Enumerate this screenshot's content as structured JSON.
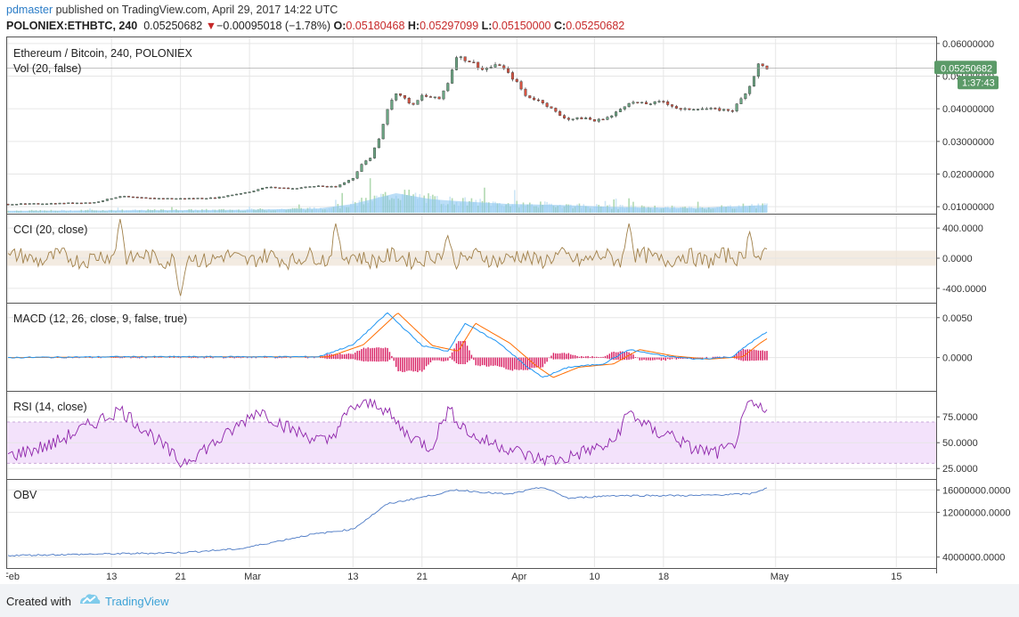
{
  "header": {
    "user": "pdmaster",
    "published_text": "published on TradingView.com, April 29, 2017 14:22 UTC",
    "symbol": "POLONIEX:ETHBTC, 240",
    "last": "0.05250682",
    "change_arrow": "▼",
    "change": "−0.00095018 (−1.78%)",
    "o_label": "O:",
    "o_value": "0.05180468",
    "h_label": "H:",
    "h_value": "0.05297099",
    "l_label": "L:",
    "l_value": "0.05150000",
    "c_label": "C:",
    "c_value": "0.05250682"
  },
  "footer": {
    "created_with": "Created with",
    "brand": "TradingView",
    "logo_icon": "tradingview-logo-icon"
  },
  "colors": {
    "up": "#6ba583",
    "down": "#d75442",
    "volume": "#83c3f0",
    "cci": "#a0804a",
    "macd": "#2196f3",
    "signal": "#ff6d00",
    "hist": "#d81b60",
    "rsi": "#8e24aa",
    "obv": "#4a78c4",
    "grid": "#e6e6e6",
    "price_tag": "#5b9a68"
  },
  "chart_data": [
    {
      "type": "candlestick",
      "title": "Ethereum / Bitcoin, 240, POLONIEX",
      "volume_label": "Vol (20, false)",
      "ylim": [
        0.0095,
        0.0605
      ],
      "y_ticks": [
        "0.06000000",
        "0.05000000",
        "0.04000000",
        "0.03000000",
        "0.02000000",
        "0.01000000"
      ],
      "y_tick_values": [
        0.06,
        0.05,
        0.04,
        0.03,
        0.02,
        0.01
      ],
      "price_tag": "0.05250682",
      "countdown_tag": "1:37:43",
      "x_ticks": [
        "Feb",
        "13",
        "21",
        "Mar",
        "13",
        "21",
        "Apr",
        "10",
        "18",
        "May",
        "15"
      ],
      "x_tick_days": [
        0,
        12,
        20,
        28,
        40,
        48,
        59,
        68,
        76,
        89,
        103
      ],
      "last_day": 88,
      "max_day": 107,
      "price_path": [
        [
          0,
          0.0108
        ],
        [
          5,
          0.011
        ],
        [
          10,
          0.0113
        ],
        [
          13,
          0.0132
        ],
        [
          16,
          0.0126
        ],
        [
          20,
          0.0125
        ],
        [
          24,
          0.0127
        ],
        [
          28,
          0.0146
        ],
        [
          30,
          0.016
        ],
        [
          33,
          0.0156
        ],
        [
          36,
          0.0164
        ],
        [
          38,
          0.016
        ],
        [
          40,
          0.0188
        ],
        [
          41,
          0.023
        ],
        [
          42,
          0.025
        ],
        [
          43,
          0.031
        ],
        [
          44,
          0.04
        ],
        [
          45,
          0.045
        ],
        [
          47,
          0.041
        ],
        [
          48,
          0.044
        ],
        [
          50,
          0.043
        ],
        [
          51,
          0.048
        ],
        [
          52,
          0.0562
        ],
        [
          54,
          0.054
        ],
        [
          55,
          0.052
        ],
        [
          57,
          0.0535
        ],
        [
          59,
          0.048
        ],
        [
          60,
          0.044
        ],
        [
          62,
          0.042
        ],
        [
          64,
          0.038
        ],
        [
          65,
          0.0368
        ],
        [
          67,
          0.0372
        ],
        [
          68,
          0.0362
        ],
        [
          70,
          0.0378
        ],
        [
          72,
          0.042
        ],
        [
          74,
          0.0415
        ],
        [
          76,
          0.0422
        ],
        [
          78,
          0.0396
        ],
        [
          80,
          0.0402
        ],
        [
          82,
          0.0398
        ],
        [
          84,
          0.0395
        ],
        [
          85,
          0.043
        ],
        [
          86,
          0.047
        ],
        [
          87,
          0.0535
        ],
        [
          88,
          0.0525
        ]
      ],
      "volume_path": [
        [
          0,
          0.1
        ],
        [
          10,
          0.12
        ],
        [
          27,
          0.15
        ],
        [
          36,
          0.22
        ],
        [
          40,
          0.45
        ],
        [
          45,
          1.0
        ],
        [
          49,
          0.7
        ],
        [
          52,
          0.6
        ],
        [
          58,
          0.45
        ],
        [
          64,
          0.4
        ],
        [
          70,
          0.3
        ],
        [
          80,
          0.25
        ],
        [
          88,
          0.4
        ]
      ]
    },
    {
      "type": "line",
      "title": "CCI (20, close)",
      "ylim": [
        -520,
        520
      ],
      "y_ticks": [
        "400.0000",
        "0.0000",
        "-400.0000"
      ],
      "y_tick_values": [
        400,
        0,
        -400
      ],
      "band": [
        -100,
        100
      ],
      "spikes": [
        [
          13,
          520
        ],
        [
          20,
          -500
        ],
        [
          38,
          460
        ],
        [
          51,
          300
        ],
        [
          72,
          460
        ],
        [
          86,
          350
        ]
      ]
    },
    {
      "type": "line",
      "title": "MACD (12, 26, close, 9, false, true)",
      "ylim": [
        -0.0035,
        0.0062
      ],
      "y_ticks": [
        "0.0050",
        "0.0000"
      ],
      "y_tick_values": [
        0.005,
        0
      ],
      "macd_path": [
        [
          0,
          0
        ],
        [
          13,
          0.0001
        ],
        [
          36,
          0.0001
        ],
        [
          40,
          0.0016
        ],
        [
          44,
          0.0056
        ],
        [
          48,
          0.0015
        ],
        [
          51,
          0.0008
        ],
        [
          53,
          0.0043
        ],
        [
          57,
          0.0018
        ],
        [
          60,
          -0.001
        ],
        [
          62,
          -0.0025
        ],
        [
          65,
          -0.0012
        ],
        [
          69,
          -0.0008
        ],
        [
          72,
          0.001
        ],
        [
          76,
          0.0002
        ],
        [
          80,
          -0.0002
        ],
        [
          84,
          0.0001
        ],
        [
          86,
          0.0018
        ],
        [
          88,
          0.0032
        ]
      ],
      "signal_lag": 1.2
    },
    {
      "type": "line",
      "title": "RSI (14, close)",
      "ylim": [
        20,
        95
      ],
      "y_ticks": [
        "75.0000",
        "50.0000",
        "25.0000"
      ],
      "y_tick_values": [
        75,
        50,
        25
      ],
      "band": [
        30,
        70
      ],
      "rsi_path": [
        [
          0,
          37
        ],
        [
          5,
          48
        ],
        [
          9,
          65
        ],
        [
          13,
          82
        ],
        [
          17,
          55
        ],
        [
          20,
          30
        ],
        [
          25,
          55
        ],
        [
          29,
          82
        ],
        [
          33,
          62
        ],
        [
          37,
          50
        ],
        [
          40,
          85
        ],
        [
          43,
          88
        ],
        [
          46,
          60
        ],
        [
          49,
          45
        ],
        [
          51,
          82
        ],
        [
          54,
          55
        ],
        [
          58,
          45
        ],
        [
          61,
          35
        ],
        [
          64,
          33
        ],
        [
          67,
          42
        ],
        [
          70,
          48
        ],
        [
          72,
          80
        ],
        [
          75,
          60
        ],
        [
          77,
          58
        ],
        [
          79,
          45
        ],
        [
          82,
          40
        ],
        [
          84,
          45
        ],
        [
          86,
          88
        ],
        [
          88,
          78
        ]
      ]
    },
    {
      "type": "line",
      "title": "OBV",
      "ylim": [
        3000000,
        17000000
      ],
      "y_ticks": [
        "16000000.0000",
        "12000000.0000",
        "4000000.0000"
      ],
      "y_tick_values": [
        16000000,
        12000000,
        4000000
      ],
      "obv_path": [
        [
          0,
          4300000
        ],
        [
          13,
          4600000
        ],
        [
          20,
          4800000
        ],
        [
          27,
          5500000
        ],
        [
          35,
          8000000
        ],
        [
          40,
          9000000
        ],
        [
          44,
          13500000
        ],
        [
          49,
          15000000
        ],
        [
          52,
          16000000
        ],
        [
          58,
          15200000
        ],
        [
          62,
          16500000
        ],
        [
          65,
          14500000
        ],
        [
          70,
          15000000
        ],
        [
          80,
          15000000
        ],
        [
          86,
          15300000
        ],
        [
          88,
          16300000
        ]
      ]
    }
  ]
}
